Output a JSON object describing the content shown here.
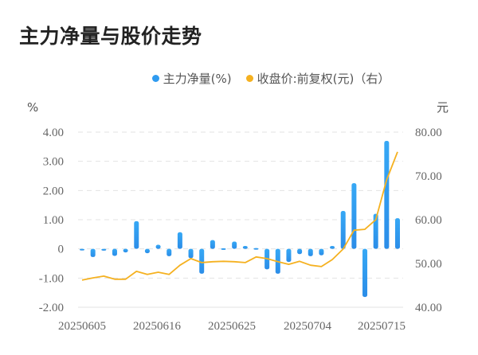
{
  "title": "主力净量与股价走势",
  "legend": [
    {
      "label": "主力净量(%)",
      "color": "#2f9bf0"
    },
    {
      "label": "收盘价:前复权(元)（右）",
      "color": "#f5b120"
    }
  ],
  "axes": {
    "left_unit": "%",
    "right_unit": "元"
  },
  "chart_data": {
    "type": "bar+line",
    "title": "主力净量与股价走势",
    "x_tick_labels": [
      "20250605",
      "20250616",
      "20250625",
      "20250704",
      "20250715"
    ],
    "y_left": {
      "label": "%",
      "ticks": [
        "4.00",
        "3.00",
        "2.00",
        "1.00",
        "0",
        "-1.00",
        "-2.00"
      ],
      "range": [
        -2,
        4
      ]
    },
    "y_right": {
      "label": "元",
      "ticks": [
        "80.00",
        "70.00",
        "60.00",
        "50.00",
        "40.00"
      ],
      "range": [
        40,
        80
      ]
    },
    "grid": true,
    "legend_position": "top",
    "series": [
      {
        "name": "主力净量(%)",
        "type": "bar",
        "axis": "left",
        "color": "#2f9bf0",
        "values": [
          -0.05,
          -0.28,
          -0.06,
          -0.24,
          -0.12,
          0.95,
          -0.15,
          0.14,
          -0.25,
          0.57,
          -0.32,
          -0.85,
          0.3,
          0.02,
          0.25,
          0.1,
          0.03,
          -0.7,
          -0.85,
          -0.45,
          -0.18,
          -0.25,
          -0.22,
          0.1,
          1.3,
          2.25,
          -1.65,
          1.2,
          3.7,
          1.05
        ]
      },
      {
        "name": "收盘价:前复权(元)（右）",
        "type": "line",
        "axis": "right",
        "color": "#f5b120",
        "values": [
          46.2,
          46.7,
          47.1,
          46.4,
          46.4,
          48.2,
          47.5,
          48.0,
          47.5,
          49.6,
          51.1,
          50.2,
          50.4,
          50.5,
          50.4,
          50.2,
          51.5,
          51.1,
          50.4,
          49.8,
          50.5,
          49.6,
          49.3,
          50.9,
          53.3,
          57.6,
          57.8,
          60.0,
          69.1,
          75.5
        ]
      }
    ]
  }
}
